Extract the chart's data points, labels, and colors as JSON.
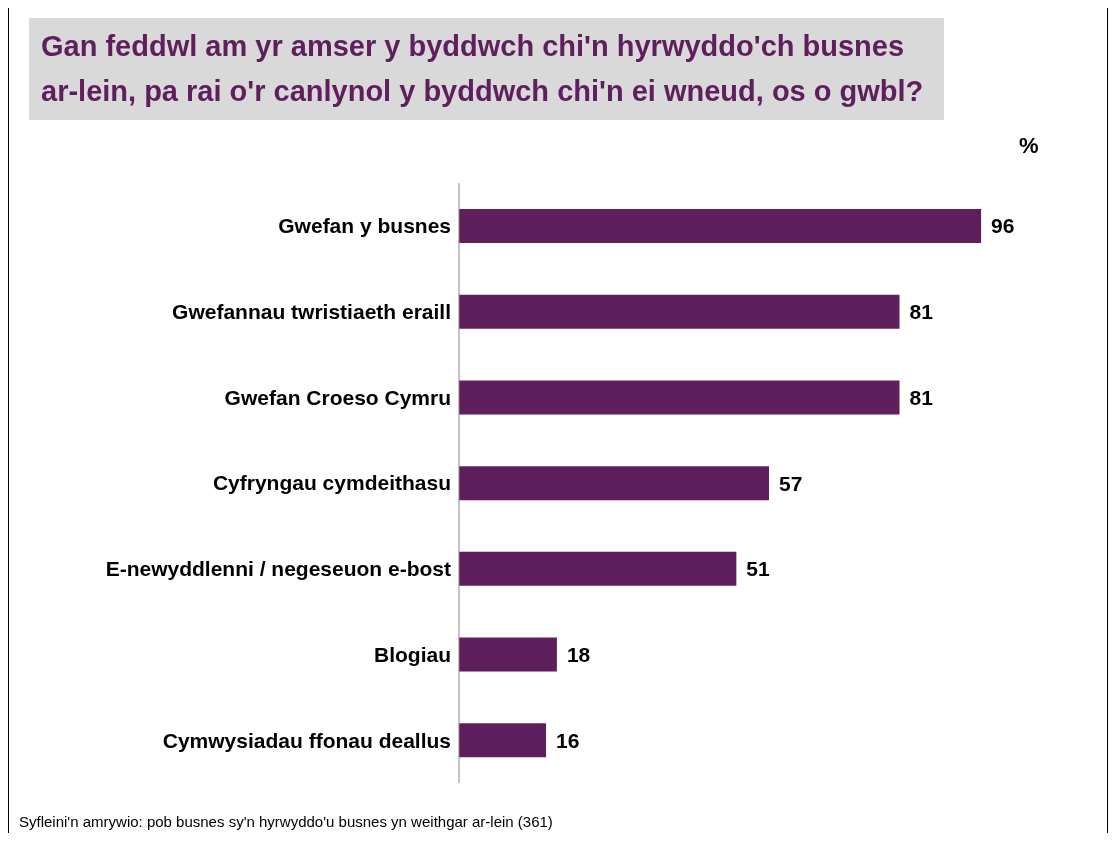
{
  "chart_data": {
    "type": "bar",
    "orientation": "horizontal",
    "title": "Gan feddwl am yr amser y byddwch chi'n hyrwyddo'ch busnes ar-lein, pa rai o'r canlynol y byddwch chi'n ei wneud, os o gwbl?",
    "xlabel": "%",
    "categories": [
      "Gwefan y busnes",
      "Gwefannau twristiaeth eraill",
      "Gwefan Croeso Cymru",
      "Cyfryngau cymdeithasu",
      "E-newyddlenni / negeseuon e-bost",
      "Blogiau",
      "Cymwysiadau ffonau deallus"
    ],
    "values": [
      96,
      81,
      81,
      57,
      51,
      18,
      16
    ],
    "color": "#5e1f5c",
    "data_labels": true,
    "grid": false,
    "legend": false,
    "annotations": [
      "Syfleini'n amrywio: pob busnes sy'n hyrwyddo'u busnes yn weithgar ar-lein (361)"
    ]
  }
}
